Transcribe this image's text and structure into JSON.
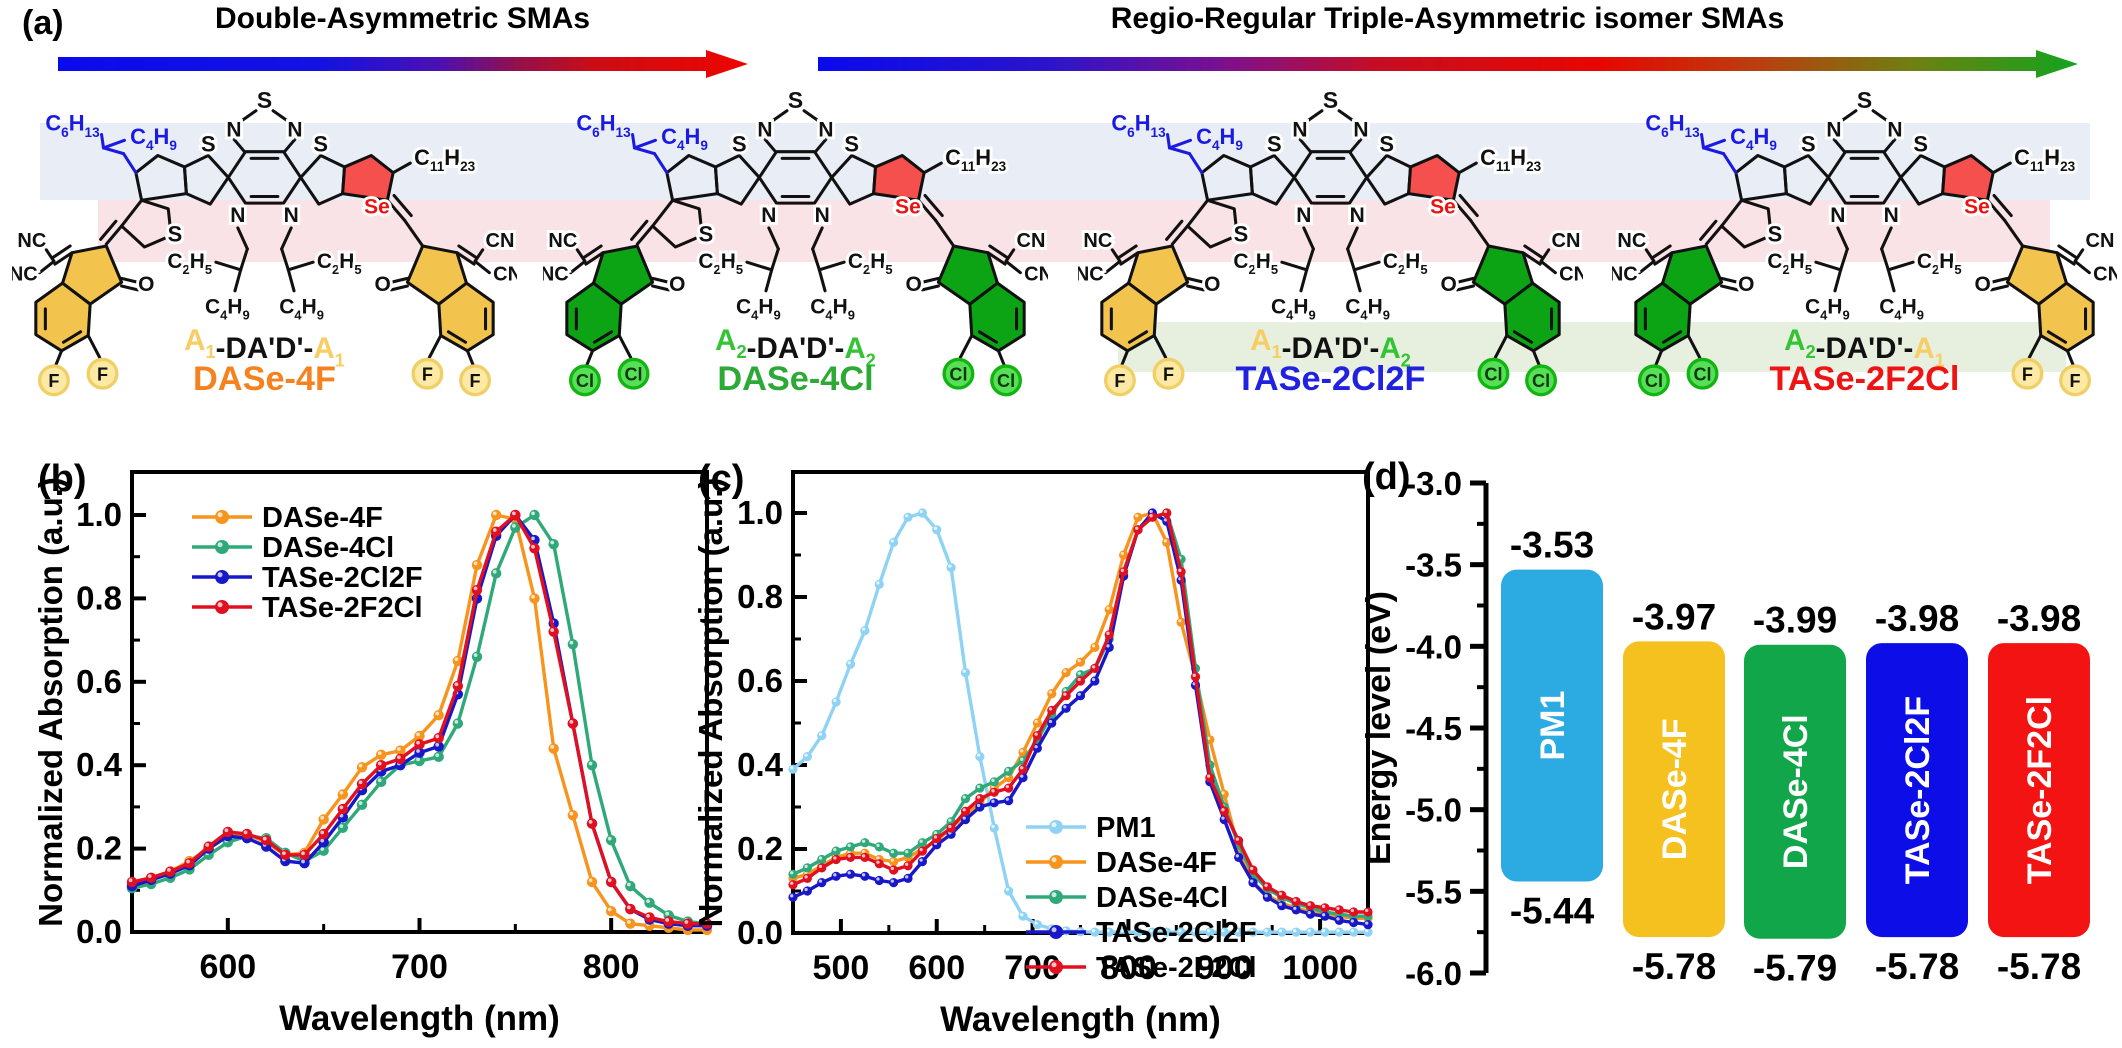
{
  "panel_a": {
    "label": "(a)",
    "groups": [
      {
        "title": "Double-Asymmetric SMAs",
        "arrow_gradient": [
          {
            "o": 0,
            "c": "#0A0AEE"
          },
          {
            "o": 0.38,
            "c": "#1212E2"
          },
          {
            "o": 0.55,
            "c": "#4A10B4"
          },
          {
            "o": 0.66,
            "c": "#90104E"
          },
          {
            "o": 0.78,
            "c": "#CC0D14"
          },
          {
            "o": 1,
            "c": "#EE0400"
          }
        ]
      },
      {
        "title": "Regio-Regular Triple-Asymmetric isomer SMAs",
        "arrow_gradient": [
          {
            "o": 0,
            "c": "#0A0AEE"
          },
          {
            "o": 0.18,
            "c": "#2A14CC"
          },
          {
            "o": 0.32,
            "c": "#7A1090"
          },
          {
            "o": 0.45,
            "c": "#C80D20"
          },
          {
            "o": 0.62,
            "c": "#E80600"
          },
          {
            "o": 0.75,
            "c": "#B84010"
          },
          {
            "o": 0.87,
            "c": "#6E8012"
          },
          {
            "o": 1,
            "c": "#12A41E"
          }
        ]
      }
    ],
    "band_colors": {
      "blue": "#E8EDF6",
      "pink": "#FAE3E6",
      "green": "#E7EFDF"
    },
    "atoms": {
      "s": "S",
      "n": "N",
      "se": "Se",
      "o": "O",
      "nc": "NC",
      "cn": "CN",
      "chain_hexyl": "C6H13",
      "chain_butyl": "C4H9",
      "chain_undecyl": "C11H23",
      "n_chain_ethyl": "C2H5",
      "n_chain_butyl": "C4H9"
    },
    "colors": {
      "alkyl_blue": "#1A1AE0",
      "se_red": "#EE1111",
      "selenophene_fill": "#F5504E",
      "end_A1_fill": "#F2C44E",
      "end_A2_fill": "#0CA315",
      "a1_text": "#F7CE63",
      "a2_text": "#33C333",
      "bond": "#111111"
    },
    "halogen_styles": {
      "F": {
        "fill": "#FCE9A4",
        "ring": "#F0CF66",
        "text": "#111111"
      },
      "Cl": {
        "fill": "#58DF58",
        "ring": "#12B412",
        "text": "#0A3A0A"
      }
    },
    "molecules": [
      {
        "name": "DASe-4F",
        "name_color": "#F5821F",
        "formula_left": "A1",
        "formula_mid": "-DA'D'-",
        "formula_right": "A1",
        "left_unit": "A1",
        "right_unit": "A1",
        "left_halogen": "F",
        "right_halogen": "F"
      },
      {
        "name": "DASe-4Cl",
        "name_color": "#2DA936",
        "formula_left": "A2",
        "formula_mid": "-DA'D'-",
        "formula_right": "A2",
        "left_unit": "A2",
        "right_unit": "A2",
        "left_halogen": "Cl",
        "right_halogen": "Cl"
      },
      {
        "name": "TASe-2Cl2F",
        "name_color": "#2121E0",
        "formula_left": "A1",
        "formula_mid": "-DA'D'-",
        "formula_right": "A2",
        "left_unit": "A1",
        "right_unit": "A2",
        "left_halogen": "F",
        "right_halogen": "Cl"
      },
      {
        "name": "TASe-2F2Cl",
        "name_color": "#EE1414",
        "formula_left": "A2",
        "formula_mid": "-DA'D'-",
        "formula_right": "A1",
        "left_unit": "A2",
        "right_unit": "A1",
        "left_halogen": "Cl",
        "right_halogen": "F"
      }
    ]
  },
  "chart_data": [
    {
      "id": "b",
      "panel_label": "(b)",
      "type": "line",
      "xlabel": "Wavelength (nm)",
      "ylabel": "Normalized Absorption (a.u.)",
      "xlim": [
        550,
        850
      ],
      "ylim": [
        0.0,
        1.1
      ],
      "x_major": [
        600,
        700,
        800
      ],
      "x_minor": [
        550,
        650,
        750,
        850
      ],
      "x_tick_labels": [
        "600",
        "700",
        "800"
      ],
      "y_major": [
        0.0,
        0.2,
        0.4,
        0.6,
        0.8,
        1.0
      ],
      "y_tick_labels": [
        "0.0",
        "0.2",
        "0.4",
        "0.6",
        "0.8",
        "1.0"
      ],
      "grid": false,
      "legend_position": "upper-left",
      "x_start": 550,
      "x_step": 10,
      "series": [
        {
          "name": "DASe-4F",
          "color": "#F7941E",
          "values": [
            0.115,
            0.13,
            0.145,
            0.17,
            0.2,
            0.23,
            0.235,
            0.215,
            0.185,
            0.19,
            0.27,
            0.33,
            0.395,
            0.425,
            0.435,
            0.47,
            0.52,
            0.65,
            0.88,
            1.0,
            0.99,
            0.8,
            0.44,
            0.28,
            0.12,
            0.05,
            0.02,
            0.015,
            0.01,
            0.005,
            0.005
          ]
        },
        {
          "name": "DASe-4Cl",
          "color": "#2FA97A",
          "values": [
            0.105,
            0.115,
            0.13,
            0.15,
            0.185,
            0.215,
            0.23,
            0.225,
            0.19,
            0.17,
            0.195,
            0.25,
            0.305,
            0.36,
            0.4,
            0.41,
            0.42,
            0.5,
            0.66,
            0.86,
            0.97,
            1.0,
            0.93,
            0.69,
            0.4,
            0.22,
            0.11,
            0.07,
            0.04,
            0.025,
            0.02
          ]
        },
        {
          "name": "TASe-2Cl2F",
          "color": "#1818C8",
          "values": [
            0.11,
            0.125,
            0.14,
            0.16,
            0.2,
            0.23,
            0.225,
            0.205,
            0.17,
            0.165,
            0.215,
            0.275,
            0.34,
            0.385,
            0.4,
            0.43,
            0.445,
            0.57,
            0.8,
            0.95,
            1.0,
            0.94,
            0.74,
            0.5,
            0.26,
            0.12,
            0.055,
            0.03,
            0.02,
            0.015,
            0.015
          ]
        },
        {
          "name": "TASe-2F2Cl",
          "color": "#E01020",
          "values": [
            0.12,
            0.13,
            0.145,
            0.165,
            0.205,
            0.24,
            0.235,
            0.22,
            0.185,
            0.185,
            0.235,
            0.295,
            0.355,
            0.4,
            0.415,
            0.45,
            0.465,
            0.59,
            0.82,
            0.96,
            1.0,
            0.92,
            0.72,
            0.5,
            0.26,
            0.12,
            0.055,
            0.035,
            0.025,
            0.02,
            0.02
          ]
        }
      ]
    },
    {
      "id": "c",
      "panel_label": "(c)",
      "type": "line",
      "xlabel": "Wavelength (nm)",
      "ylabel": "Normalized Absorption (a.u.)",
      "xlim": [
        450,
        1050
      ],
      "ylim": [
        0.0,
        1.1
      ],
      "x_major": [
        500,
        600,
        700,
        800,
        900,
        1000
      ],
      "x_minor": [
        450,
        550,
        650,
        750,
        850,
        950,
        1050
      ],
      "x_tick_labels": [
        "500",
        "600",
        "700",
        "800",
        "900",
        "1000"
      ],
      "y_major": [
        0.0,
        0.2,
        0.4,
        0.6,
        0.8,
        1.0
      ],
      "y_tick_labels": [
        "0.0",
        "0.2",
        "0.4",
        "0.6",
        "0.8",
        "1.0"
      ],
      "grid": false,
      "legend_position": "middle-right",
      "x_start": 450,
      "x_step": 15,
      "series": [
        {
          "name": "PM1",
          "color": "#8FD3F4",
          "values": [
            0.39,
            0.42,
            0.47,
            0.55,
            0.64,
            0.72,
            0.83,
            0.93,
            0.99,
            1.0,
            0.96,
            0.87,
            0.62,
            0.42,
            0.25,
            0.1,
            0.04,
            0.02,
            0.01,
            0.005,
            0.003,
            0.002,
            0.002,
            0.002,
            0.002,
            0.002,
            0.002,
            0.002,
            0.002,
            0.002,
            0.002,
            0.002,
            0.002,
            0.002,
            0.002,
            0.002,
            0.002,
            0.002,
            0.002,
            0.002,
            0.002
          ]
        },
        {
          "name": "DASe-4F",
          "color": "#F7941E",
          "values": [
            0.13,
            0.14,
            0.16,
            0.18,
            0.19,
            0.19,
            0.175,
            0.17,
            0.18,
            0.2,
            0.22,
            0.25,
            0.28,
            0.31,
            0.345,
            0.37,
            0.43,
            0.5,
            0.57,
            0.62,
            0.645,
            0.68,
            0.77,
            0.9,
            0.99,
            1.0,
            0.93,
            0.74,
            0.61,
            0.46,
            0.33,
            0.2,
            0.12,
            0.09,
            0.07,
            0.06,
            0.05,
            0.045,
            0.04,
            0.035,
            0.035
          ]
        },
        {
          "name": "DASe-4Cl",
          "color": "#2FA97A",
          "values": [
            0.14,
            0.155,
            0.175,
            0.195,
            0.205,
            0.215,
            0.205,
            0.19,
            0.19,
            0.215,
            0.235,
            0.265,
            0.32,
            0.345,
            0.36,
            0.385,
            0.41,
            0.46,
            0.52,
            0.575,
            0.615,
            0.63,
            0.7,
            0.85,
            0.96,
            0.99,
            1.0,
            0.89,
            0.63,
            0.4,
            0.3,
            0.21,
            0.14,
            0.105,
            0.085,
            0.07,
            0.06,
            0.05,
            0.045,
            0.04,
            0.04
          ]
        },
        {
          "name": "TASe-2Cl2F",
          "color": "#1818C8",
          "values": [
            0.085,
            0.1,
            0.12,
            0.135,
            0.14,
            0.135,
            0.125,
            0.12,
            0.13,
            0.17,
            0.21,
            0.235,
            0.27,
            0.3,
            0.31,
            0.315,
            0.37,
            0.44,
            0.5,
            0.535,
            0.565,
            0.6,
            0.68,
            0.85,
            0.96,
            1.0,
            0.98,
            0.84,
            0.59,
            0.36,
            0.27,
            0.18,
            0.12,
            0.085,
            0.065,
            0.055,
            0.045,
            0.04,
            0.03,
            0.025,
            0.02
          ]
        },
        {
          "name": "TASe-2F2Cl",
          "color": "#E01020",
          "values": [
            0.115,
            0.13,
            0.155,
            0.175,
            0.18,
            0.18,
            0.165,
            0.15,
            0.16,
            0.195,
            0.225,
            0.25,
            0.29,
            0.32,
            0.335,
            0.345,
            0.39,
            0.47,
            0.53,
            0.565,
            0.6,
            0.63,
            0.71,
            0.86,
            0.96,
            0.99,
            1.0,
            0.86,
            0.61,
            0.37,
            0.29,
            0.22,
            0.15,
            0.11,
            0.09,
            0.075,
            0.065,
            0.06,
            0.055,
            0.05,
            0.05
          ]
        }
      ]
    },
    {
      "id": "d",
      "panel_label": "(d)",
      "type": "energy-bar",
      "ylabel": "Energy level (eV)",
      "ylim": [
        -6.0,
        -3.0
      ],
      "y_major": [
        -3.0,
        -3.5,
        -4.0,
        -4.5,
        -5.0,
        -5.5,
        -6.0
      ],
      "y_tick_labels": [
        "-3.0",
        "-3.5",
        "-4.0",
        "-4.5",
        "-5.0",
        "-5.5",
        "-6.0"
      ],
      "bars": [
        {
          "name": "PM1",
          "color": "#2CABE2",
          "lumo": -3.53,
          "homo": -5.44,
          "lumo_label": "-3.53",
          "homo_label": "-5.44"
        },
        {
          "name": "DASe-4F",
          "color": "#F5C11E",
          "lumo": -3.97,
          "homo": -5.78,
          "lumo_label": "-3.97",
          "homo_label": "-5.78"
        },
        {
          "name": "DASe-4Cl",
          "color": "#12A64B",
          "lumo": -3.99,
          "homo": -5.79,
          "lumo_label": "-3.99",
          "homo_label": "-5.79"
        },
        {
          "name": "TASe-2Cl2F",
          "color": "#0D0DE8",
          "lumo": -3.98,
          "homo": -5.78,
          "lumo_label": "-3.98",
          "homo_label": "-5.78"
        },
        {
          "name": "TASe-2F2Cl",
          "color": "#F31313",
          "lumo": -3.98,
          "homo": -5.78,
          "lumo_label": "-3.98",
          "homo_label": "-5.78"
        }
      ]
    }
  ]
}
